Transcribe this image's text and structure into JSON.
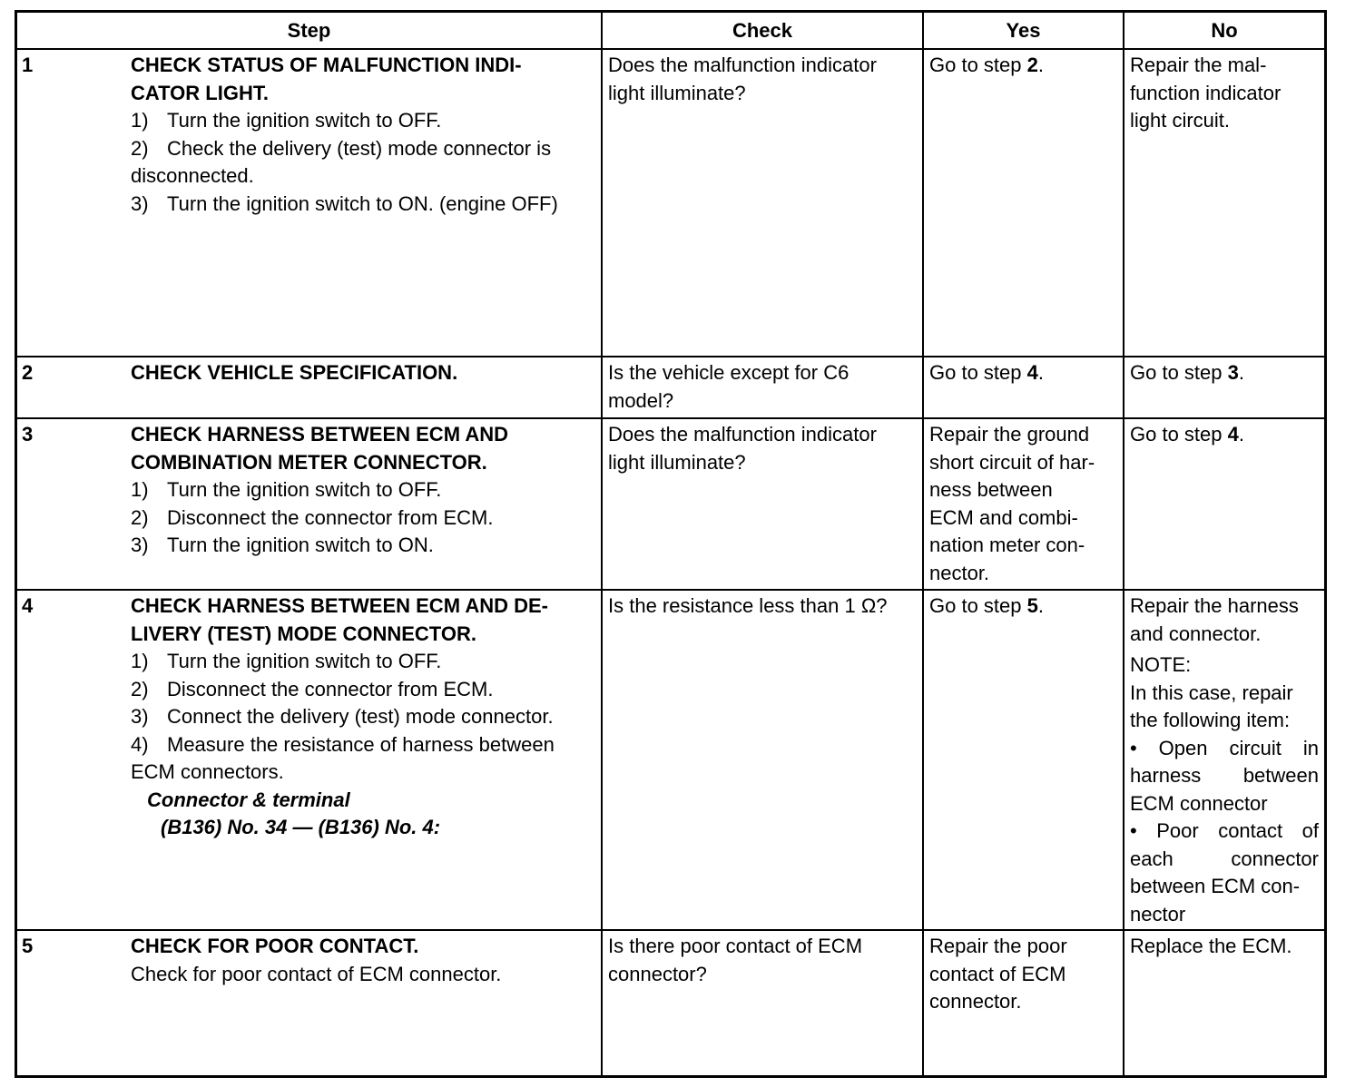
{
  "headers": {
    "step": "Step",
    "check": "Check",
    "yes": "Yes",
    "no": "No"
  },
  "rows": [
    {
      "num": "1",
      "title": [
        "CHECK STATUS OF MALFUNCTION INDI-",
        "CATOR LIGHT."
      ],
      "subs": [
        {
          "n": "1)",
          "t": "Turn the ignition switch to OFF."
        },
        {
          "n": "2)",
          "t": "Check the delivery (test) mode connector is"
        },
        {
          "n": "3)",
          "t": "Turn the ignition switch to ON. (engine OFF)"
        }
      ],
      "sub2_cont": "disconnected.",
      "check": [
        "Does the malfunction indicator",
        "light illuminate?"
      ],
      "yes": {
        "prefix": "Go to step ",
        "step": "2",
        "suffix": "."
      },
      "no": [
        "Repair the mal-",
        "function indicator",
        "light circuit."
      ]
    },
    {
      "num": "2",
      "title": [
        "CHECK VEHICLE SPECIFICATION."
      ],
      "check": [
        "Is the vehicle except for C6",
        "model?"
      ],
      "yes": {
        "prefix": "Go to step ",
        "step": "4",
        "suffix": "."
      },
      "no": {
        "prefix": "Go to step ",
        "step": "3",
        "suffix": "."
      }
    },
    {
      "num": "3",
      "title": [
        "CHECK HARNESS BETWEEN ECM AND",
        "COMBINATION METER CONNECTOR."
      ],
      "subs": [
        {
          "n": "1)",
          "t": "Turn the ignition switch to OFF."
        },
        {
          "n": "2)",
          "t": "Disconnect the connector from ECM."
        },
        {
          "n": "3)",
          "t": "Turn the ignition switch to ON."
        }
      ],
      "check": [
        "Does the malfunction indicator",
        "light illuminate?"
      ],
      "yes": [
        "Repair the ground",
        "short circuit of har-",
        "ness between",
        "ECM and combi-",
        "nation meter con-",
        "nector."
      ],
      "no": {
        "prefix": "Go to step ",
        "step": "4",
        "suffix": "."
      }
    },
    {
      "num": "4",
      "title": [
        "CHECK HARNESS BETWEEN ECM AND DE-",
        "LIVERY (TEST) MODE CONNECTOR."
      ],
      "subs": [
        {
          "n": "1)",
          "t": "Turn the ignition switch to OFF."
        },
        {
          "n": "2)",
          "t": "Disconnect the connector from ECM."
        },
        {
          "n": "3)",
          "t": "Connect the delivery (test) mode connector."
        },
        {
          "n": "4)",
          "t": "Measure the resistance of harness between"
        }
      ],
      "sub4_cont": "ECM connectors.",
      "connector_label": "Connector & terminal",
      "connector_value": "(B136) No. 34 — (B136) No. 4:",
      "check": [
        "Is the resistance less than 1 Ω?"
      ],
      "yes": {
        "prefix": "Go to step ",
        "step": "5",
        "suffix": "."
      },
      "no": [
        "Repair the harness",
        "and connector.",
        "NOTE:",
        "In this case, repair",
        "the following item:",
        "• Open circuit in",
        "harness between",
        "ECM connector",
        "• Poor contact of",
        "each connector",
        "between ECM con-",
        "nector"
      ]
    },
    {
      "num": "5",
      "title": [
        "CHECK FOR POOR CONTACT."
      ],
      "body": "Check for poor contact of ECM connector.",
      "check": [
        "Is there poor contact of ECM",
        "connector?"
      ],
      "yes": [
        "Repair the poor",
        "contact of ECM",
        "connector."
      ],
      "no": [
        "Replace the ECM."
      ]
    }
  ]
}
